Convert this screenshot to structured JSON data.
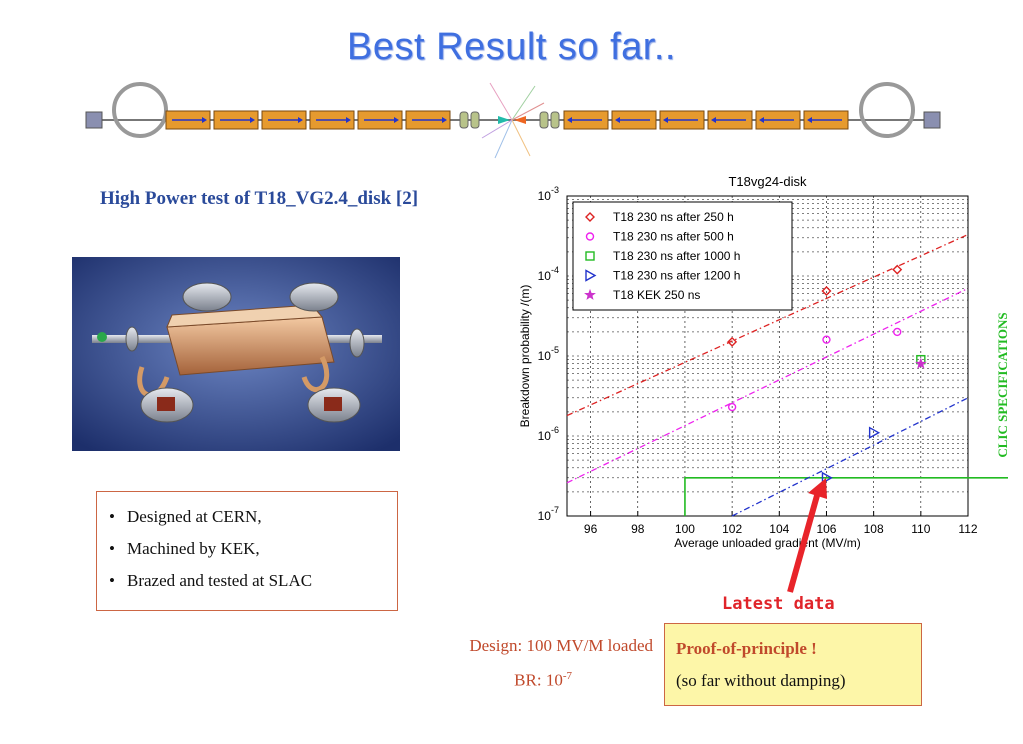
{
  "slide": {
    "title": "Best Result so far..",
    "subtitle": "High Power test of T18_VG2.4_disk [2]",
    "bullets": [
      "Designed at CERN,",
      "Machined by KEK,",
      "Brazed and tested at SLAC"
    ],
    "design_line": "Design: 100 MV/M loaded",
    "br_prefix": "BR: 10",
    "br_exponent": "-7",
    "proof_line1": "Proof-of-principle !",
    "proof_line2": "(so far without damping)",
    "latest_label": "Latest data",
    "clic_label": "CLIC SPECIFICATIONS"
  },
  "colors": {
    "title": "#3f6fe0",
    "accent_red": "#c0492b",
    "arrow": "#e8242a",
    "spec_line": "#22bb22"
  },
  "chart_data": {
    "type": "scatter",
    "title": "T18vg24-disk",
    "xlabel": "Average unloaded gradient (MV/m)",
    "ylabel": "Breakdown probability /(m)",
    "xlim": [
      95,
      112
    ],
    "ylim": [
      1e-07,
      0.001
    ],
    "yscale": "log",
    "xticks": [
      96,
      98,
      100,
      102,
      104,
      106,
      108,
      110,
      112
    ],
    "yticks": [
      {
        "value": 1e-07,
        "base": "10",
        "exp": "-7"
      },
      {
        "value": 1e-06,
        "base": "10",
        "exp": "-6"
      },
      {
        "value": 1e-05,
        "base": "10",
        "exp": "-5"
      },
      {
        "value": 0.0001,
        "base": "10",
        "exp": "-4"
      },
      {
        "value": 0.001,
        "base": "10",
        "exp": "-3"
      }
    ],
    "grid": true,
    "legend_position": "top-left",
    "series": [
      {
        "name": "T18 230 ns after 250 h",
        "marker": "diamond",
        "color": "#dd2222",
        "points": [
          [
            102,
            1.5e-05
          ],
          [
            106,
            6.5e-05
          ],
          [
            109,
            0.00012
          ]
        ],
        "fit": [
          [
            95,
            1.8e-06
          ],
          [
            112,
            0.00033
          ]
        ]
      },
      {
        "name": "T18 230 ns after 500 h",
        "marker": "circle",
        "color": "#ee22ee",
        "points": [
          [
            102,
            2.3e-06
          ],
          [
            106,
            1.6e-05
          ],
          [
            109,
            2e-05
          ]
        ],
        "fit": [
          [
            95,
            2.6e-07
          ],
          [
            112,
            7e-05
          ]
        ]
      },
      {
        "name": "T18 230 ns after 1000 h",
        "marker": "square",
        "color": "#22bb22",
        "points": [
          [
            110,
            9e-06
          ]
        ]
      },
      {
        "name": "T18 230 ns after 1200 h",
        "marker": "triangle-right",
        "color": "#2233cc",
        "points": [
          [
            106,
            3e-07
          ],
          [
            108,
            1.1e-06
          ]
        ],
        "fit": [
          [
            102,
            1e-07
          ],
          [
            112,
            3e-06
          ]
        ]
      },
      {
        "name": "T18 KEK 250 ns",
        "marker": "star",
        "color": "#cc33cc",
        "points": [
          [
            110,
            8e-06
          ]
        ]
      }
    ],
    "spec_line": {
      "x_start": 100,
      "y": 3e-07
    }
  }
}
